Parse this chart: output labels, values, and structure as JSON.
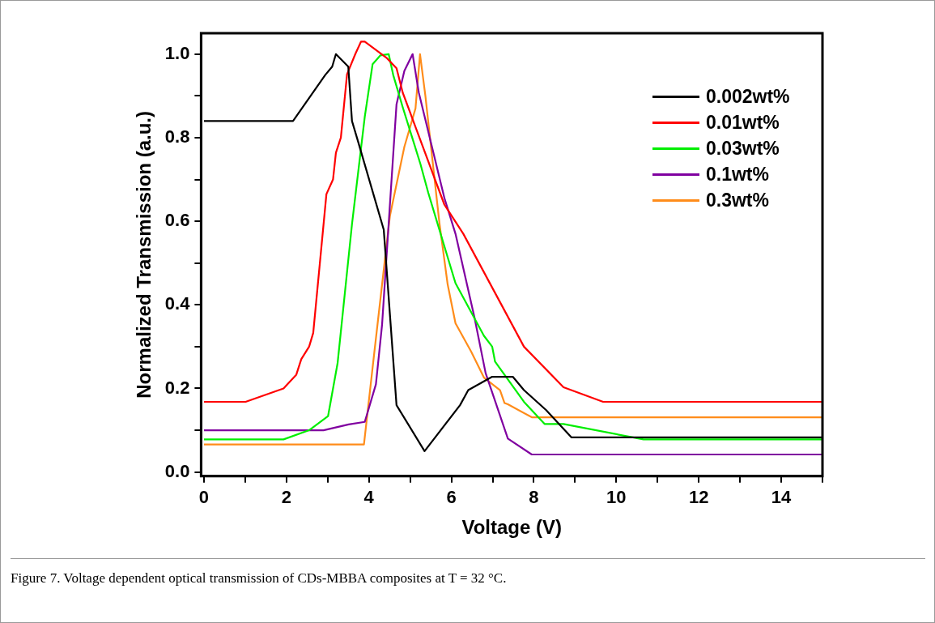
{
  "chart_data": {
    "type": "line",
    "xlabel": "Voltage (V)",
    "ylabel": "Normalized Transmission (a.u.)",
    "xlim": [
      -0.07,
      15
    ],
    "ylim": [
      -0.01,
      1.05
    ],
    "xticks": [
      0,
      {
        "value": 1,
        "label": null
      },
      2,
      {
        "value": 3,
        "label": null
      },
      4,
      {
        "value": 5,
        "label": null
      },
      6,
      {
        "value": 7,
        "label": null
      },
      8,
      {
        "value": 9,
        "label": null
      },
      10,
      {
        "value": 11,
        "label": null
      },
      12,
      {
        "value": 13,
        "label": null
      },
      14,
      {
        "value": 15,
        "label": null
      }
    ],
    "yticks": [
      {
        "value": 0,
        "label": "0.0"
      },
      {
        "value": 0.1,
        "label": null
      },
      {
        "value": 0.2,
        "label": "0.2"
      },
      {
        "value": 0.3,
        "label": null
      },
      {
        "value": 0.4,
        "label": "0.4"
      },
      {
        "value": 0.5,
        "label": null
      },
      {
        "value": 0.6,
        "label": "0.6"
      },
      {
        "value": 0.7,
        "label": null
      },
      {
        "value": 0.8,
        "label": "0.8"
      },
      {
        "value": 0.9,
        "label": null
      },
      {
        "value": 1,
        "label": "1.0"
      }
    ],
    "grid": false,
    "legend": "top right",
    "marker": "none",
    "line_style": "solid",
    "series": [
      {
        "name": "0.002wt%",
        "color": "#000000",
        "x": [
          0,
          2.16,
          2.94,
          3.11,
          3.2,
          3.5,
          3.59,
          3.74,
          4.36,
          4.67,
          5.35,
          6.21,
          6.41,
          6.99,
          7.49,
          7.76,
          8.3,
          8.91,
          15
        ],
        "values": [
          0.84,
          0.84,
          0.95,
          0.97,
          1.0,
          0.97,
          0.84,
          0.79,
          0.58,
          0.16,
          0.05,
          0.16,
          0.196,
          0.228,
          0.228,
          0.196,
          0.148,
          0.083,
          0.083
        ]
      },
      {
        "name": "0.01wt%",
        "color": "#ff0000",
        "x": [
          0,
          1.01,
          1.93,
          2.24,
          2.36,
          2.55,
          2.65,
          2.97,
          3.13,
          3.2,
          3.32,
          3.47,
          3.67,
          3.81,
          3.9,
          4.44,
          4.67,
          4.82,
          5.83,
          6.29,
          7.76,
          8.72,
          9.68,
          15
        ],
        "values": [
          0.168,
          0.168,
          0.2,
          0.233,
          0.27,
          0.3,
          0.333,
          0.665,
          0.7,
          0.764,
          0.8,
          0.952,
          1.0,
          1.03,
          1.03,
          0.99,
          0.966,
          0.908,
          0.64,
          0.57,
          0.3,
          0.203,
          0.168,
          0.168
        ]
      },
      {
        "name": "0.03wt%",
        "color": "#00ee00",
        "x": [
          0,
          1.93,
          2.55,
          3.01,
          3.24,
          3.59,
          3.9,
          4.09,
          4.28,
          4.48,
          4.59,
          4.82,
          5.25,
          5.44,
          6.1,
          6.79,
          6.99,
          7.06,
          7.76,
          8.26,
          8.72,
          10.66,
          15
        ],
        "values": [
          0.078,
          0.078,
          0.1,
          0.134,
          0.26,
          0.593,
          0.85,
          0.976,
          0.997,
          1.0,
          0.95,
          0.873,
          0.737,
          0.668,
          0.452,
          0.326,
          0.3,
          0.264,
          0.168,
          0.115,
          0.115,
          0.078,
          0.078
        ]
      },
      {
        "name": "0.1wt%",
        "color": "#8000a0",
        "x": [
          0,
          2.9,
          3.51,
          3.9,
          4.17,
          4.32,
          4.51,
          4.67,
          4.86,
          5.06,
          5.21,
          5.83,
          6.1,
          6.56,
          6.83,
          7.37,
          7.95,
          15
        ],
        "values": [
          0.1,
          0.1,
          0.114,
          0.12,
          0.21,
          0.353,
          0.64,
          0.88,
          0.96,
          1.0,
          0.908,
          0.656,
          0.57,
          0.37,
          0.237,
          0.08,
          0.042,
          0.042
        ]
      },
      {
        "name": "0.3wt%",
        "color": "#ff8c1a",
        "x": [
          0,
          3.88,
          4.13,
          4.51,
          4.86,
          5.13,
          5.24,
          5.37,
          5.71,
          5.91,
          6.1,
          6.48,
          6.79,
          7.18,
          7.29,
          7.37,
          7.95,
          15
        ],
        "values": [
          0.066,
          0.066,
          0.285,
          0.613,
          0.778,
          0.87,
          1.0,
          0.9,
          0.596,
          0.449,
          0.356,
          0.288,
          0.226,
          0.196,
          0.165,
          0.162,
          0.131,
          0.131
        ]
      }
    ],
    "annotations": [
      "Figure 7. Voltage dependent optical transmission of CDs-MBBA composites at T = 32 °C."
    ]
  }
}
